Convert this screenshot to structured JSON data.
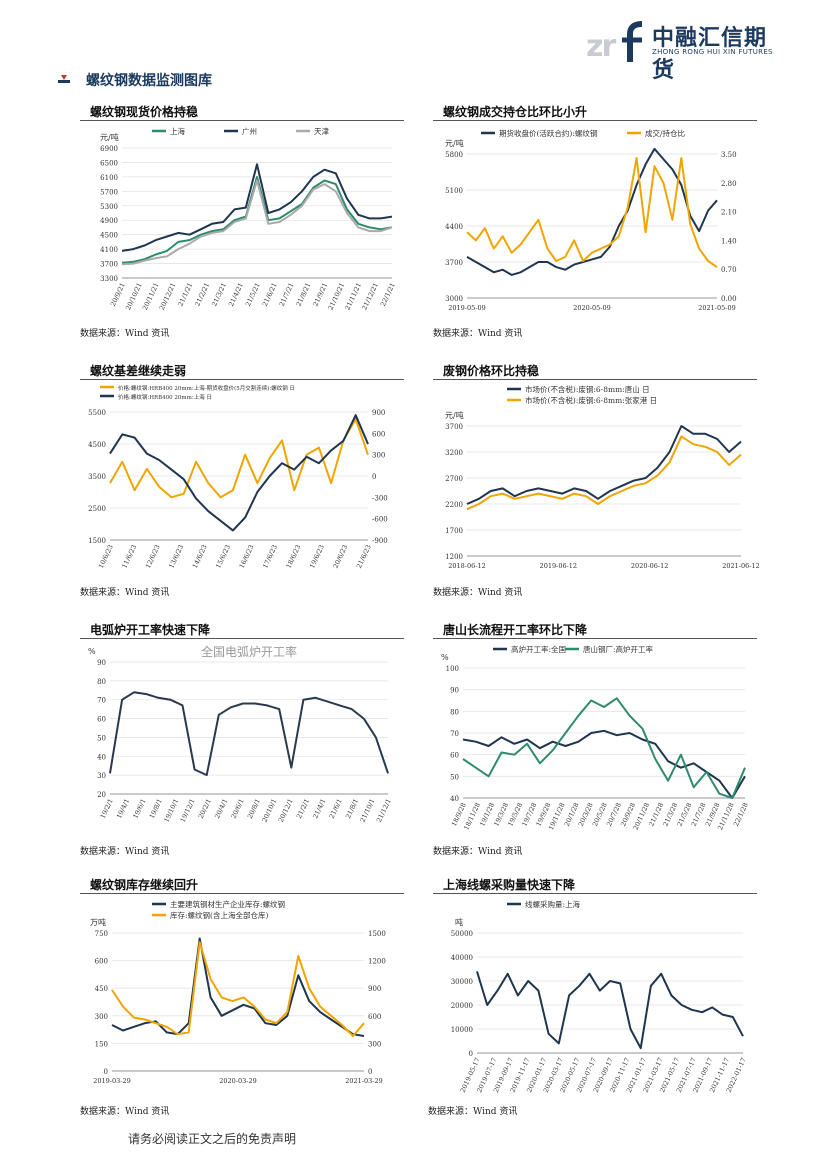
{
  "brand": {
    "name_cn": "中融汇信期货",
    "name_en": "ZHONG RONG HUI XIN FUTURES",
    "mark": "zrf"
  },
  "section": {
    "title": "螺纹钢数据监测图库"
  },
  "footer": {
    "disclaimer": "请务必阅读正文之后的免责声明"
  },
  "charts": [
    {
      "title": "螺纹钢现货价格持稳",
      "source": "数据来源：Wind 资讯",
      "chart_data": {
        "type": "line",
        "unit": "元/吨",
        "y_ticks": [
          "3300",
          "3700",
          "4100",
          "4500",
          "4900",
          "5300",
          "5700",
          "6100",
          "6500",
          "6900"
        ],
        "ylim": [
          3300,
          6900
        ],
        "x_ticks": [
          "20/9/21",
          "20/10/21",
          "20/11/21",
          "20/12/21",
          "21/1/21",
          "21/2/21",
          "21/3/21",
          "21/4/21",
          "21/5/21",
          "21/6/21",
          "21/7/21",
          "21/8/21",
          "21/9/21",
          "21/10/21",
          "21/11/21",
          "21/12/21",
          "22/1/21"
        ],
        "series": [
          {
            "name": "上海",
            "color": "#2e8b6e",
            "values": [
              3720,
              3750,
              3820,
              3950,
              4050,
              4300,
              4350,
              4500,
              4600,
              4650,
              4900,
              5000,
              6100,
              4900,
              4950,
              5150,
              5350,
              5800,
              6000,
              5900,
              5200,
              4800,
              4700,
              4650,
              4700
            ]
          },
          {
            "name": "广州",
            "color": "#1f3550",
            "values": [
              4050,
              4100,
              4200,
              4350,
              4450,
              4550,
              4500,
              4650,
              4800,
              4850,
              5200,
              5250,
              6450,
              5100,
              5200,
              5400,
              5700,
              6100,
              6300,
              6200,
              5500,
              5050,
              4950,
              4950,
              5000
            ]
          },
          {
            "name": "天津",
            "color": "#aaaaaa",
            "values": [
              3680,
              3700,
              3780,
              3850,
              3900,
              4100,
              4250,
              4450,
              4550,
              4600,
              4850,
              4950,
              6000,
              4800,
              4850,
              5050,
              5300,
              5750,
              5900,
              5700,
              5100,
              4700,
              4600,
              4600,
              4700
            ]
          }
        ]
      }
    },
    {
      "title": "螺纹钢成交持仓比环比小升",
      "source": "数据来源：Wind 资讯",
      "chart_data": {
        "type": "line",
        "unit": "元/吨",
        "y_ticks": [
          "3000",
          "3700",
          "4400",
          "5100",
          "5800"
        ],
        "ylim": [
          3000,
          5800
        ],
        "y2_ticks": [
          "0.00",
          "0.70",
          "1.40",
          "2.10",
          "2.80",
          "3.50"
        ],
        "y2lim": [
          0,
          3.5
        ],
        "x_ticks": [
          "2019-05-09",
          "2020-05-09",
          "2021-05-09"
        ],
        "series": [
          {
            "name": "期货收盘价(活跃合约):螺纹钢",
            "color": "#1f3550",
            "axis": "left",
            "values": [
              3800,
              3700,
              3600,
              3500,
              3550,
              3450,
              3500,
              3600,
              3700,
              3700,
              3600,
              3550,
              3650,
              3700,
              3750,
              3800,
              4000,
              4400,
              4700,
              5200,
              5600,
              5900,
              5700,
              5500,
              5200,
              4600,
              4300,
              4700,
              4900
            ]
          },
          {
            "name": "成交/持仓比",
            "color": "#f0a500",
            "axis": "right",
            "values": [
              1.6,
              1.4,
              1.7,
              1.2,
              1.5,
              1.1,
              1.3,
              1.6,
              1.9,
              1.2,
              0.9,
              1.0,
              1.4,
              0.9,
              1.1,
              1.2,
              1.3,
              1.5,
              2.2,
              3.4,
              1.6,
              3.2,
              2.8,
              1.9,
              3.4,
              1.8,
              1.2,
              0.9,
              0.75
            ]
          }
        ]
      }
    },
    {
      "title": "螺纹基差继续走弱",
      "source": "数据来源：Wind 资讯",
      "chart_data": {
        "type": "line",
        "y_ticks": [
          "1500",
          "2500",
          "3500",
          "4500",
          "5500"
        ],
        "ylim": [
          1500,
          5500
        ],
        "y2_ticks": [
          "-900",
          "-600",
          "-300",
          "0",
          "300",
          "600",
          "900"
        ],
        "y2lim": [
          -900,
          900
        ],
        "x_ticks": [
          "10/6/23",
          "11/6/23",
          "12/6/23",
          "13/6/23",
          "14/6/23",
          "15/6/23",
          "16/6/23",
          "17/6/23",
          "18/6/23",
          "19/6/23",
          "20/6/23",
          "21/6/23"
        ],
        "series": [
          {
            "name": "价格:螺纹钢:HRB400 20mm:上海-期货收盘价(5月交割连续):螺纹钢 日",
            "color": "#f0a500",
            "axis": "right",
            "values": [
              -100,
              200,
              -200,
              100,
              -150,
              -300,
              -250,
              200,
              -100,
              -300,
              -200,
              300,
              -100,
              250,
              500,
              -200,
              300,
              400,
              -100,
              500,
              800,
              300
            ]
          },
          {
            "name": "价格:螺纹钢:HRB400 20mm:上海 日",
            "color": "#1f3550",
            "axis": "left",
            "values": [
              4200,
              4800,
              4700,
              4200,
              4000,
              3700,
              3400,
              2800,
              2400,
              2100,
              1800,
              2200,
              3000,
              3500,
              3900,
              3700,
              4100,
              3900,
              4300,
              4600,
              5400,
              4500
            ]
          }
        ]
      }
    },
    {
      "title": "废钢价格环比持稳",
      "source": "数据来源：Wind 资讯",
      "chart_data": {
        "type": "line",
        "unit": "元/吨",
        "y_ticks": [
          "1200",
          "1700",
          "2200",
          "2700",
          "3200",
          "3700"
        ],
        "ylim": [
          1200,
          3700
        ],
        "x_ticks": [
          "2018-06-12",
          "2019-06-12",
          "2020-06-12",
          "2021-06-12"
        ],
        "series": [
          {
            "name": "市场价(不含税):废钢:6-8mm:唐山 日",
            "color": "#1f3550",
            "values": [
              2200,
              2300,
              2450,
              2500,
              2350,
              2450,
              2500,
              2450,
              2400,
              2500,
              2450,
              2300,
              2450,
              2550,
              2650,
              2700,
              2900,
              3200,
              3700,
              3550,
              3550,
              3450,
              3200,
              3400
            ]
          },
          {
            "name": "市场价(不含税):废钢:6-8mm:张家港 日",
            "color": "#f0a500",
            "values": [
              2100,
              2200,
              2350,
              2400,
              2300,
              2350,
              2400,
              2350,
              2300,
              2400,
              2350,
              2200,
              2350,
              2450,
              2550,
              2600,
              2750,
              3000,
              3500,
              3350,
              3300,
              3200,
              2950,
              3150
            ]
          }
        ]
      }
    },
    {
      "title": "电弧炉开工率快速下降",
      "source": "数据来源：Wind 资讯",
      "chart_data": {
        "type": "line",
        "unit": "%",
        "title": "全国电弧炉开工率",
        "y_ticks": [
          "20",
          "30",
          "40",
          "50",
          "60",
          "70",
          "80",
          "90"
        ],
        "ylim": [
          20,
          90
        ],
        "x_ticks": [
          "19/2/1",
          "19/4/1",
          "19/6/1",
          "19/8/1",
          "19/10/1",
          "19/12/1",
          "20/2/1",
          "20/4/1",
          "20/6/1",
          "20/8/1",
          "20/10/1",
          "20/12/1",
          "21/2/1",
          "21/4/1",
          "21/6/1",
          "21/8/1",
          "21/10/1",
          "21/12/1"
        ],
        "series": [
          {
            "name": "电弧炉开工率",
            "color": "#2a3a4e",
            "values": [
              31,
              70,
              74,
              73,
              71,
              70,
              67,
              33,
              30,
              62,
              66,
              68,
              68,
              67,
              65,
              34,
              70,
              71,
              69,
              67,
              65,
              60,
              50,
              31
            ]
          }
        ]
      }
    },
    {
      "title": "唐山长流程开工率环比下降",
      "source": "数据来源：Wind 资讯",
      "chart_data": {
        "type": "line",
        "unit": "%",
        "y_ticks": [
          "40",
          "50",
          "60",
          "70",
          "80",
          "90",
          "100"
        ],
        "ylim": [
          40,
          100
        ],
        "x_ticks": [
          "18/9/28",
          "18/11/28",
          "19/1/28",
          "19/3/28",
          "19/5/28",
          "19/7/28",
          "19/9/28",
          "19/11/28",
          "20/1/28",
          "20/3/28",
          "20/5/28",
          "20/7/28",
          "20/9/28",
          "20/11/28",
          "21/1/28",
          "21/3/28",
          "21/5/28",
          "21/7/28",
          "21/9/28",
          "21/11/28",
          "22/1/28"
        ],
        "series": [
          {
            "name": "高炉开工率:全国",
            "color": "#1f3550",
            "values": [
              67,
              66,
              64,
              68,
              65,
              67,
              63,
              66,
              64,
              66,
              70,
              71,
              69,
              70,
              67,
              65,
              57,
              54,
              56,
              52,
              48,
              40,
              50
            ]
          },
          {
            "name": "唐山钢厂:高炉开工率",
            "color": "#2e8b6e",
            "values": [
              58,
              54,
              50,
              61,
              60,
              65,
              56,
              62,
              70,
              78,
              85,
              82,
              86,
              78,
              72,
              58,
              48,
              60,
              45,
              52,
              42,
              40,
              54
            ]
          }
        ]
      }
    },
    {
      "title": "螺纹钢库存继续回升",
      "source": "数据来源：Wind 资讯",
      "chart_data": {
        "type": "line",
        "unit": "万吨",
        "y_ticks": [
          "0",
          "150",
          "300",
          "450",
          "600",
          "750"
        ],
        "ylim": [
          0,
          750
        ],
        "y2_ticks": [
          "0",
          "300",
          "600",
          "900",
          "1200",
          "1500"
        ],
        "y2lim": [
          0,
          1500
        ],
        "x_ticks": [
          "2019-03-29",
          "2020-03-29",
          "2021-03-29"
        ],
        "series": [
          {
            "name": "主要建筑钢材生产企业库存:螺纹钢",
            "color": "#1f3550",
            "axis": "left",
            "values": [
              250,
              220,
              240,
              260,
              270,
              210,
              200,
              260,
              720,
              400,
              300,
              330,
              360,
              340,
              260,
              250,
              300,
              520,
              380,
              320,
              280,
              240,
              200,
              190
            ]
          },
          {
            "name": "库存:螺纹钢(含上海全部仓库)",
            "color": "#f0a500",
            "axis": "right",
            "values": [
              880,
              700,
              580,
              560,
              520,
              480,
              400,
              420,
              1400,
              1000,
              800,
              760,
              800,
              700,
              560,
              520,
              640,
              1250,
              900,
              700,
              600,
              500,
              380,
              520
            ]
          }
        ]
      }
    },
    {
      "title": "上海线螺采购量快速下降",
      "source": "数据来源：Wind 资讯",
      "chart_data": {
        "type": "line",
        "unit": "吨",
        "y_ticks": [
          "0",
          "10000",
          "20000",
          "30000",
          "40000",
          "50000"
        ],
        "ylim": [
          0,
          50000
        ],
        "x_ticks": [
          "2019-05-17",
          "2019-07-17",
          "2019-09-17",
          "2019-11-17",
          "2020-01-17",
          "2020-03-17",
          "2020-05-17",
          "2020-07-17",
          "2020-09-17",
          "2020-11-17",
          "2021-01-17",
          "2021-03-17",
          "2021-05-17",
          "2021-07-17",
          "2021-09-17",
          "2021-11-17",
          "2022-01-17"
        ],
        "series": [
          {
            "name": "线螺采购量:上海",
            "color": "#1f3550",
            "values": [
              34000,
              20000,
              26000,
              33000,
              24000,
              30000,
              26000,
              8000,
              4000,
              24000,
              28000,
              33000,
              26000,
              30000,
              29000,
              10000,
              2000,
              28000,
              33000,
              24000,
              20000,
              18000,
              17000,
              19000,
              16000,
              15000,
              7000
            ]
          }
        ]
      }
    }
  ]
}
